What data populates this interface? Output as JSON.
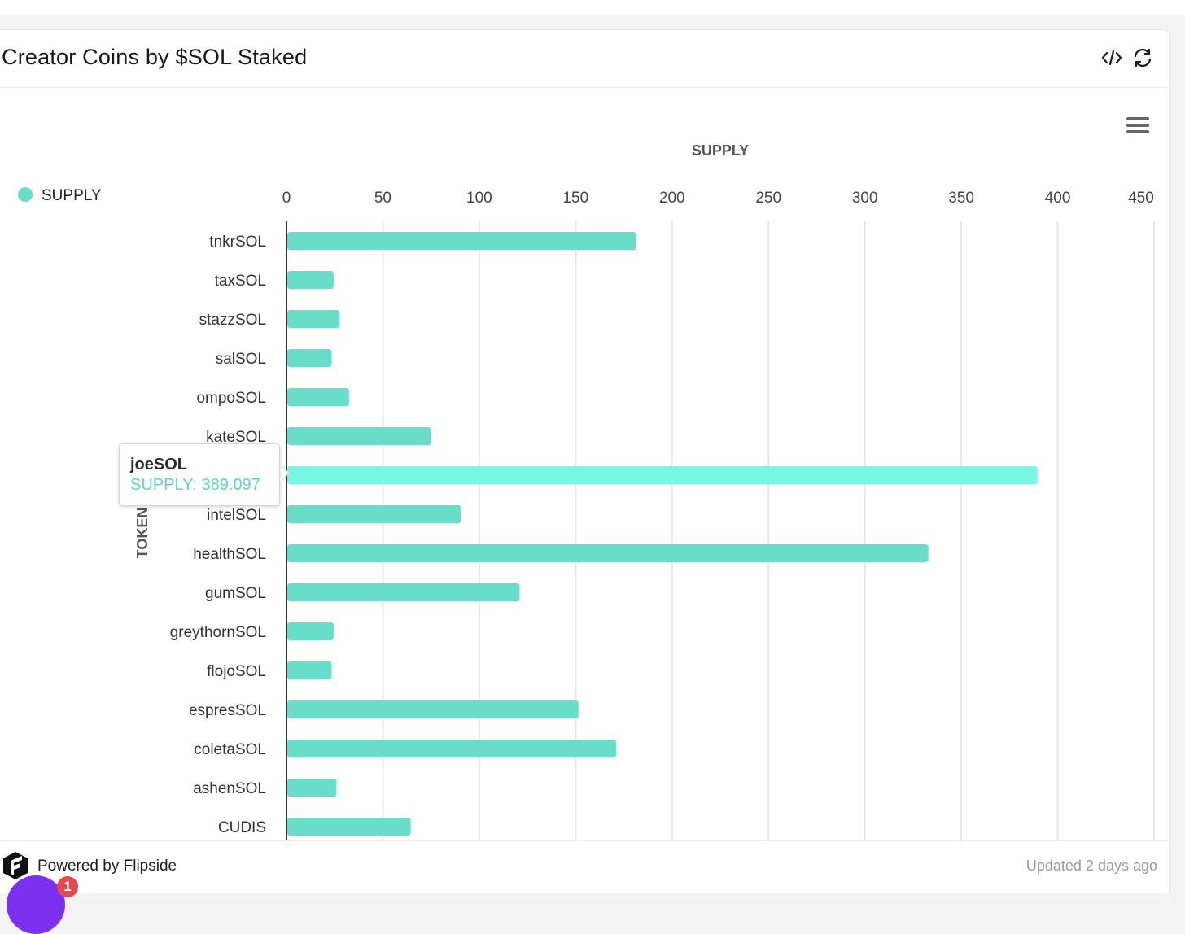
{
  "card": {
    "title": "Creator Coins by $SOL Staked",
    "embed_icon": "code-icon",
    "refresh_icon": "refresh-icon",
    "menu_icon": "hamburger-menu-icon"
  },
  "footer": {
    "powered_by": "Powered by Flipside",
    "logo_icon": "flipside-logo-icon",
    "updated": "Updated 2 days ago"
  },
  "chat": {
    "icon": "chat-bubble-icon",
    "badge_count": "1"
  },
  "colors": {
    "bar": "#68ddc9",
    "bar_highlight": "#78f6e4",
    "tooltip_value": "#5cd6c0",
    "grid": "#e6e6e6",
    "axis": "#333333"
  },
  "tooltip": {
    "name": "joeSOL",
    "value": "SUPPLY: 389.097"
  },
  "chart_data": {
    "type": "bar",
    "orientation": "horizontal",
    "title": "SUPPLY",
    "xlabel": "SUPPLY",
    "ylabel": "TOKEN",
    "legend": [
      "SUPPLY"
    ],
    "legend_position": "top-left",
    "xlim": [
      0,
      450
    ],
    "xticks": [
      0,
      50,
      100,
      150,
      200,
      250,
      300,
      350,
      400,
      450
    ],
    "grid": true,
    "categories": [
      "tnkrSOL",
      "taxSOL",
      "stazzSOL",
      "salSOL",
      "ompoSOL",
      "kateSOL",
      "joeSOL",
      "intelSOL",
      "healthSOL",
      "gumSOL",
      "greythornSOL",
      "flojoSOL",
      "espresSOL",
      "coletaSOL",
      "ashenSOL",
      "CUDIS"
    ],
    "series": [
      {
        "name": "SUPPLY",
        "values": [
          181,
          24,
          27,
          23,
          32,
          74.5,
          389.097,
          90,
          332.5,
          120.5,
          24,
          23,
          151,
          170.5,
          25.5,
          64
        ]
      }
    ],
    "highlighted_category": "joeSOL"
  }
}
